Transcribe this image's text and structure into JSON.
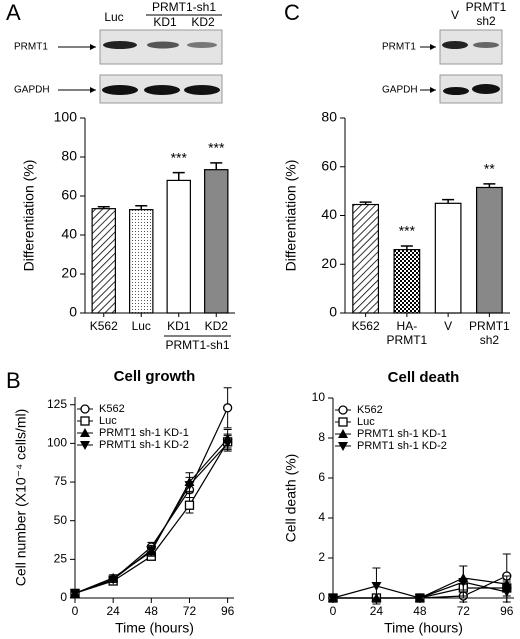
{
  "panels": [
    "A",
    "B",
    "C"
  ],
  "blots": [
    {
      "lanes": [
        "Luc",
        "KD1",
        "KD2"
      ],
      "lane_group": "PRMT1-sh1",
      "rows": [
        "PRMT1",
        "GAPDH"
      ]
    },
    {
      "lanes": [
        "V",
        [
          "PRMT1",
          "sh2"
        ]
      ],
      "rows": [
        "PRMT1",
        "GAPDH"
      ]
    }
  ],
  "chart_data": [
    {
      "type": "bar",
      "ylabel": "Differentiation (%)",
      "categories": [
        "K562",
        "Luc",
        "KD1",
        "KD2"
      ],
      "category_groups": [
        {
          "label": "PRMT1-sh1",
          "categories": [
            2,
            3
          ]
        }
      ],
      "values": [
        53.5,
        53,
        68,
        73.5
      ],
      "errors": [
        1,
        2,
        4,
        3.5
      ],
      "annotations": [
        null,
        null,
        "***",
        "***"
      ],
      "fills": [
        "hatch",
        "dots",
        "white",
        "gray"
      ],
      "ylim": [
        0,
        100
      ],
      "yticks": [
        0,
        20,
        40,
        60,
        80,
        100
      ]
    },
    {
      "type": "bar",
      "ylabel": "Differentiation (%)",
      "categories": [
        "K562",
        [
          "HA-",
          "PRMT1"
        ],
        "V",
        [
          "PRMT1",
          "sh2"
        ]
      ],
      "values": [
        44.5,
        26,
        45,
        51.5
      ],
      "errors": [
        1,
        1.5,
        1.5,
        1.5
      ],
      "annotations": [
        null,
        "***",
        null,
        "**"
      ],
      "fills": [
        "hatch",
        "check",
        "white",
        "gray"
      ],
      "ylim": [
        0,
        80
      ],
      "yticks": [
        0,
        20,
        40,
        60,
        80
      ]
    },
    {
      "type": "line",
      "title": "Cell growth",
      "xlabel": "Time (hours)",
      "ylabel": "Cell number (X10⁻⁴ cells/ml)",
      "x": [
        0,
        24,
        48,
        72,
        96
      ],
      "xlim": [
        0,
        100
      ],
      "xticks": [
        0,
        24,
        48,
        72,
        96
      ],
      "ylim": [
        0,
        130
      ],
      "yticks": [
        0,
        25,
        50,
        75,
        100,
        125
      ],
      "legend": "upper left",
      "series": [
        {
          "name": "K562",
          "marker": "circle",
          "color": "#000000",
          "values": [
            3,
            12,
            33,
            70,
            123
          ],
          "errors": [
            1,
            2,
            3,
            5,
            13
          ]
        },
        {
          "name": "Luc",
          "marker": "square",
          "color": "#000000",
          "values": [
            3,
            11,
            27,
            60,
            101
          ],
          "errors": [
            1,
            2,
            2,
            5,
            5
          ]
        },
        {
          "name": "PRMT1 sh-1 KD-1",
          "marker": "triangle-up",
          "color": "#000000",
          "values": [
            3,
            13,
            30,
            75,
            103
          ],
          "errors": [
            1,
            2,
            3,
            6,
            6
          ]
        },
        {
          "name": "PRMT1 sh-1 KD-2",
          "marker": "triangle-down",
          "color": "#000000",
          "values": [
            3,
            12,
            31,
            73,
            100
          ],
          "errors": [
            1,
            2,
            3,
            5,
            5
          ]
        }
      ]
    },
    {
      "type": "line",
      "title": "Cell death",
      "xlabel": "Time (hours)",
      "ylabel": "Cell death (%)",
      "x": [
        0,
        24,
        48,
        72,
        96
      ],
      "xlim": [
        0,
        100
      ],
      "xticks": [
        0,
        24,
        48,
        72,
        96
      ],
      "ylim": [
        0,
        10
      ],
      "yticks": [
        0,
        2,
        4,
        6,
        8,
        10
      ],
      "legend": "upper left",
      "series": [
        {
          "name": "K562",
          "marker": "circle",
          "color": "#000000",
          "values": [
            0,
            0,
            0,
            0.1,
            1.1
          ],
          "errors": [
            0,
            0,
            0,
            0.3,
            1.1
          ]
        },
        {
          "name": "Luc",
          "marker": "square",
          "color": "#000000",
          "values": [
            0,
            0,
            0,
            0.5,
            0.5
          ],
          "errors": [
            0,
            0,
            0,
            0.4,
            0.4
          ]
        },
        {
          "name": "PRMT1 sh-1 KD-1",
          "marker": "triangle-up",
          "color": "#000000",
          "values": [
            0,
            0,
            0,
            1,
            0.7
          ],
          "errors": [
            0,
            0,
            0,
            0.6,
            0.4
          ]
        },
        {
          "name": "PRMT1 sh-1 KD-2",
          "marker": "triangle-down",
          "color": "#000000",
          "values": [
            0,
            0.6,
            0,
            0.8,
            0.3
          ],
          "errors": [
            0,
            0.9,
            0,
            0.8,
            0.5
          ]
        }
      ]
    }
  ]
}
